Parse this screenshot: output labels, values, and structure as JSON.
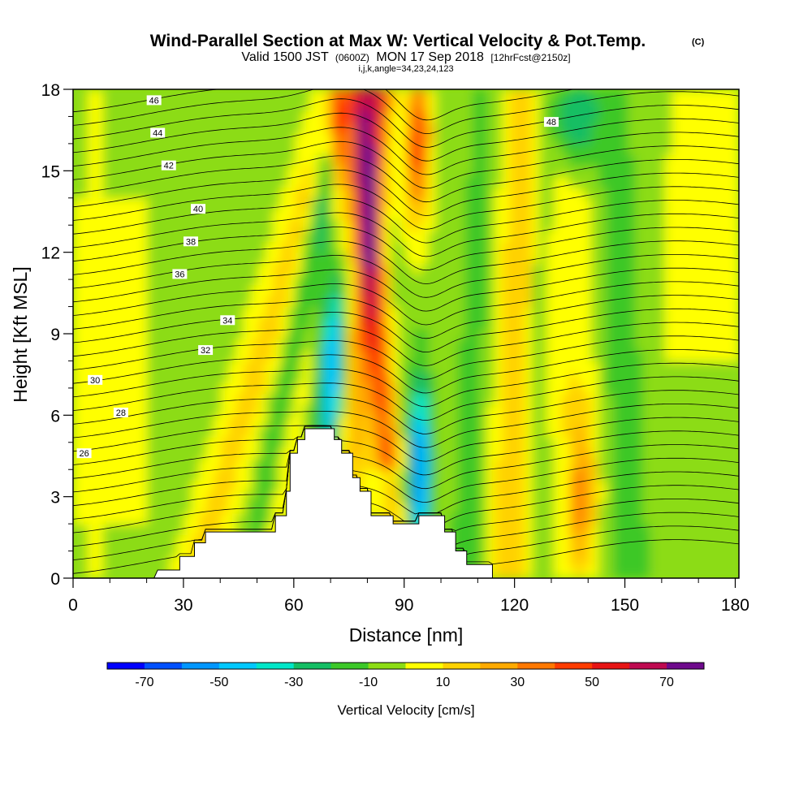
{
  "chart_data": {
    "type": "heatmap",
    "title": "Wind-Parallel Section at Max W: Vertical Velocity & Pot.Temp.",
    "title_unit": "(C)",
    "subtitle_prefix": "Valid 1500 JST",
    "subtitle_utc": "(0600Z)",
    "subtitle_date": "MON 17 Sep 2018",
    "subtitle_fcst": "[12hrFcst@2150z]",
    "subtitle2": "i,j,k,angle=34,23,24,123",
    "xlabel": "Distance [nm]",
    "ylabel": "Height [Kft MSL]",
    "xlim": [
      0,
      181
    ],
    "ylim": [
      0,
      18
    ],
    "x_ticks": [
      0,
      30,
      60,
      90,
      120,
      150,
      180
    ],
    "y_ticks": [
      0,
      3,
      6,
      9,
      12,
      15,
      18
    ],
    "colorbar": {
      "label": "Vertical Velocity [cm/s]",
      "ticks": [
        -70,
        -50,
        -30,
        -10,
        10,
        30,
        50,
        70
      ],
      "bins": [
        {
          "from": -80,
          "to": -70,
          "color": "#0000ff"
        },
        {
          "from": -70,
          "to": -60,
          "color": "#0050ff"
        },
        {
          "from": -60,
          "to": -50,
          "color": "#0096ff"
        },
        {
          "from": -50,
          "to": -40,
          "color": "#00c8ff"
        },
        {
          "from": -40,
          "to": -30,
          "color": "#00e6c8"
        },
        {
          "from": -30,
          "to": -20,
          "color": "#14be64"
        },
        {
          "from": -20,
          "to": -10,
          "color": "#3cc828"
        },
        {
          "from": -10,
          "to": 0,
          "color": "#8cdc14"
        },
        {
          "from": 0,
          "to": 10,
          "color": "#ffff00"
        },
        {
          "from": 10,
          "to": 20,
          "color": "#ffd200"
        },
        {
          "from": 20,
          "to": 30,
          "color": "#ffaa00"
        },
        {
          "from": 30,
          "to": 40,
          "color": "#ff7800"
        },
        {
          "from": 40,
          "to": 50,
          "color": "#ff3c00"
        },
        {
          "from": 50,
          "to": 60,
          "color": "#e61414"
        },
        {
          "from": 60,
          "to": 70,
          "color": "#be0a50"
        },
        {
          "from": 70,
          "to": 80,
          "color": "#6e0a8c"
        }
      ]
    },
    "terrain_profile": [
      {
        "x": 0,
        "h": 0
      },
      {
        "x": 22,
        "h": 0
      },
      {
        "x": 23,
        "h": 0.3
      },
      {
        "x": 29,
        "h": 0.3
      },
      {
        "x": 29,
        "h": 0.8
      },
      {
        "x": 33,
        "h": 0.8
      },
      {
        "x": 33,
        "h": 1.3
      },
      {
        "x": 36,
        "h": 1.3
      },
      {
        "x": 36,
        "h": 1.7
      },
      {
        "x": 55,
        "h": 1.7
      },
      {
        "x": 55,
        "h": 2.3
      },
      {
        "x": 58,
        "h": 2.3
      },
      {
        "x": 58,
        "h": 3.2
      },
      {
        "x": 59,
        "h": 3.2
      },
      {
        "x": 59,
        "h": 4.6
      },
      {
        "x": 61,
        "h": 4.6
      },
      {
        "x": 61,
        "h": 5.1
      },
      {
        "x": 63,
        "h": 5.1
      },
      {
        "x": 63,
        "h": 5.5
      },
      {
        "x": 71,
        "h": 5.5
      },
      {
        "x": 71,
        "h": 5.1
      },
      {
        "x": 73,
        "h": 5.1
      },
      {
        "x": 73,
        "h": 4.6
      },
      {
        "x": 76,
        "h": 4.6
      },
      {
        "x": 76,
        "h": 3.7
      },
      {
        "x": 78,
        "h": 3.7
      },
      {
        "x": 78,
        "h": 3.2
      },
      {
        "x": 81,
        "h": 3.2
      },
      {
        "x": 81,
        "h": 2.3
      },
      {
        "x": 87,
        "h": 2.3
      },
      {
        "x": 87,
        "h": 2.0
      },
      {
        "x": 94,
        "h": 2.0
      },
      {
        "x": 94,
        "h": 2.3
      },
      {
        "x": 101,
        "h": 2.3
      },
      {
        "x": 101,
        "h": 1.7
      },
      {
        "x": 104,
        "h": 1.7
      },
      {
        "x": 104,
        "h": 1.0
      },
      {
        "x": 107,
        "h": 1.0
      },
      {
        "x": 107,
        "h": 0.5
      },
      {
        "x": 114,
        "h": 0.5
      },
      {
        "x": 114,
        "h": 0
      },
      {
        "x": 181,
        "h": 0
      }
    ],
    "theta_contours": [
      {
        "value": 26,
        "label_x": 3,
        "label_y": 4.6
      },
      {
        "value": 28,
        "label_x": 13,
        "label_y": 6.1
      },
      {
        "value": 30,
        "label_x": 6,
        "label_y": 7.3
      },
      {
        "value": 32,
        "label_x": 36,
        "label_y": 8.4
      },
      {
        "value": 34,
        "label_x": 42,
        "label_y": 9.5
      },
      {
        "value": 36,
        "label_x": 29,
        "label_y": 11.2
      },
      {
        "value": 38,
        "label_x": 32,
        "label_y": 12.4
      },
      {
        "value": 40,
        "label_x": 34,
        "label_y": 13.6
      },
      {
        "value": 42,
        "label_x": 26,
        "label_y": 15.2
      },
      {
        "value": 44,
        "label_x": 23,
        "label_y": 16.4
      },
      {
        "value": 46,
        "label_x": 22,
        "label_y": 17.6
      },
      {
        "value": 48,
        "label_x": 130,
        "label_y": 16.8
      }
    ]
  }
}
